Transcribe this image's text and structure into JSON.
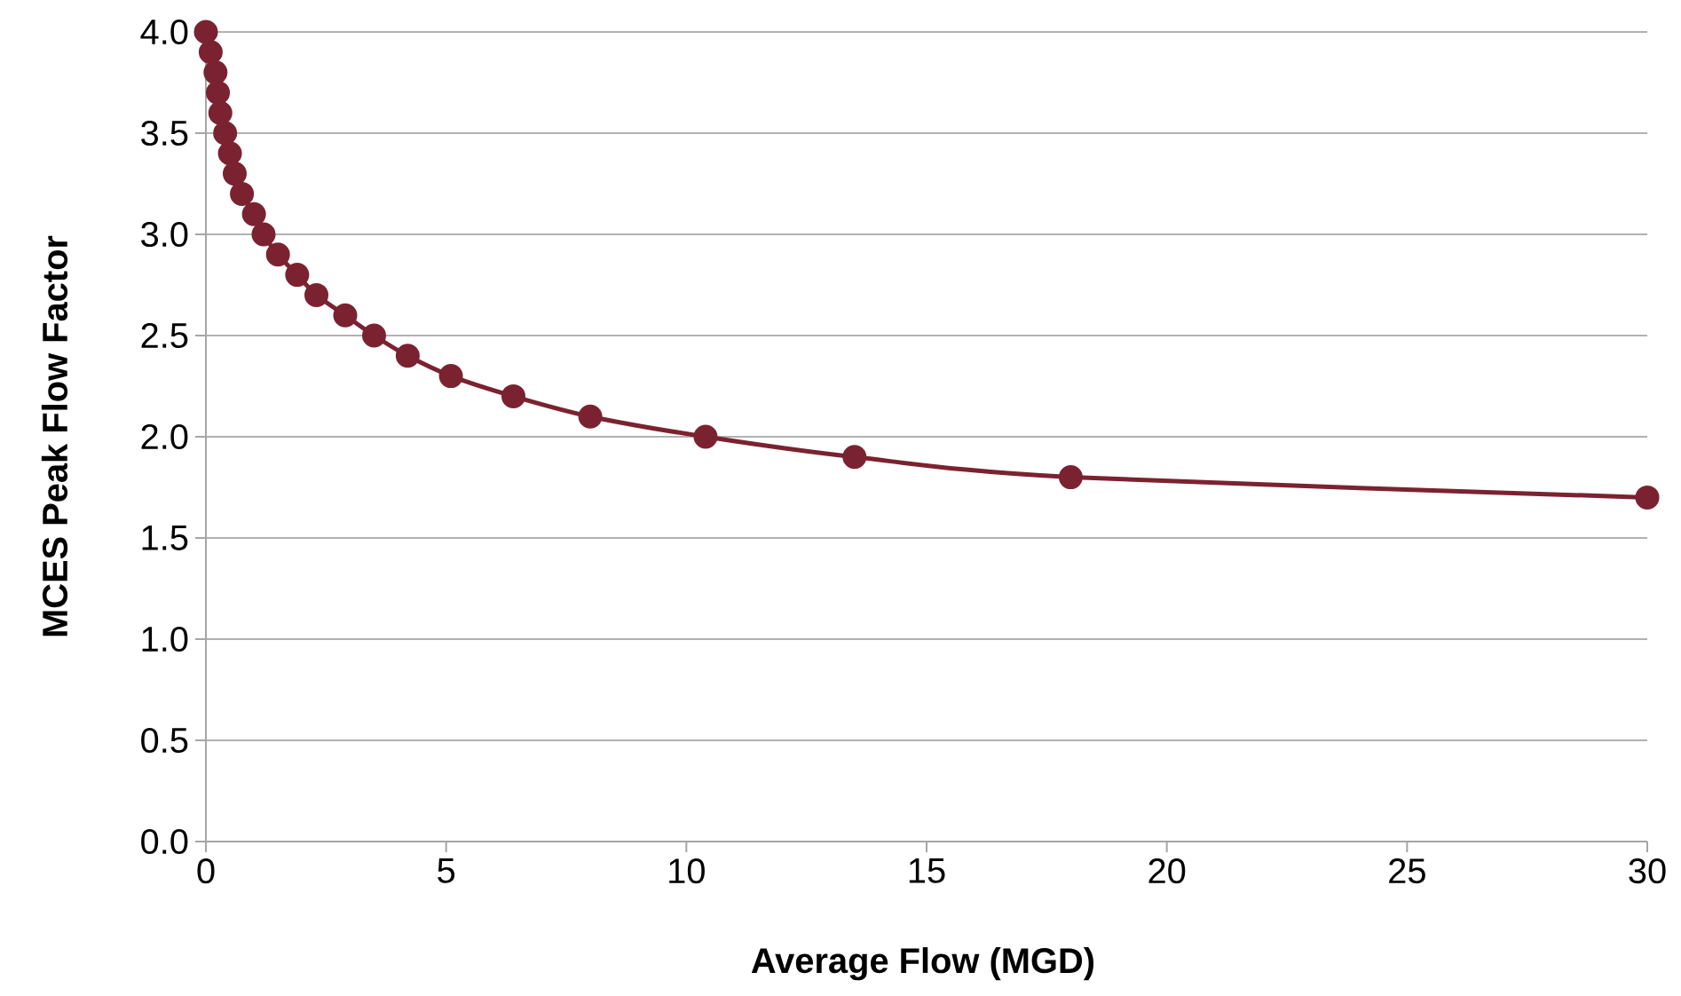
{
  "chart_data": {
    "type": "line",
    "xlabel": "Average Flow (MGD)",
    "ylabel": "MCES Peak Flow Factor",
    "series": [
      {
        "color": "#7b2230",
        "x": [
          0,
          0.1,
          0.2,
          0.25,
          0.3,
          0.4,
          0.5,
          0.6,
          0.75,
          1.0,
          1.2,
          1.5,
          1.9,
          2.3,
          2.9,
          3.5,
          4.2,
          5.1,
          6.4,
          8.0,
          10.4,
          13.5,
          18,
          30
        ],
        "values": [
          4.0,
          3.9,
          3.8,
          3.7,
          3.6,
          3.5,
          3.4,
          3.3,
          3.2,
          3.1,
          3.0,
          2.9,
          2.8,
          2.7,
          2.6,
          2.5,
          2.4,
          2.3,
          2.2,
          2.1,
          2.0,
          1.9,
          1.8,
          1.7
        ]
      }
    ],
    "xlim": [
      0,
      30
    ],
    "xticks": [
      0,
      5,
      10,
      15,
      20,
      25,
      30
    ],
    "ylim": [
      0,
      4
    ],
    "yticks": [
      {
        "value": 0,
        "label": "0.0"
      },
      {
        "value": 0.5,
        "label": "0.5"
      },
      {
        "value": 1,
        "label": "1.0"
      },
      {
        "value": 1.5,
        "label": "1.5"
      },
      {
        "value": 2,
        "label": "2.0"
      },
      {
        "value": 2.5,
        "label": "2.5"
      },
      {
        "value": 3,
        "label": "3.0"
      },
      {
        "value": 3.5,
        "label": "3.5"
      },
      {
        "value": 4,
        "label": "4.0"
      }
    ],
    "grid": "y",
    "marker": "circle",
    "line_style": "solid"
  }
}
